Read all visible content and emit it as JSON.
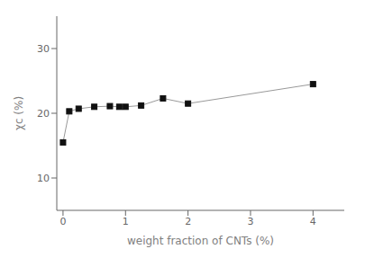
{
  "chart_data": {
    "type": "line",
    "x": [
      0,
      0.1,
      0.25,
      0.5,
      0.75,
      0.9,
      1.0,
      1.25,
      1.6,
      2.0,
      4.0
    ],
    "values": [
      15.5,
      20.3,
      20.7,
      21.0,
      21.1,
      21.0,
      21.0,
      21.2,
      22.3,
      21.5,
      24.5
    ],
    "xlabel": "weight fraction of CNTs (%)",
    "ylabel": "χc (%)",
    "xlim": [
      -0.1,
      4.5
    ],
    "ylim": [
      5,
      35
    ],
    "xticks": [
      0,
      1,
      2,
      3,
      4
    ],
    "yticks": [
      10,
      20,
      30
    ],
    "color": "#999999",
    "colors": [
      "#111111",
      "#111111",
      "#111111",
      "#111111",
      "#111111",
      "#111111",
      "#111111",
      "#111111",
      "#111111",
      "#111111",
      "#111111"
    ],
    "marker": "square",
    "grid": false
  }
}
